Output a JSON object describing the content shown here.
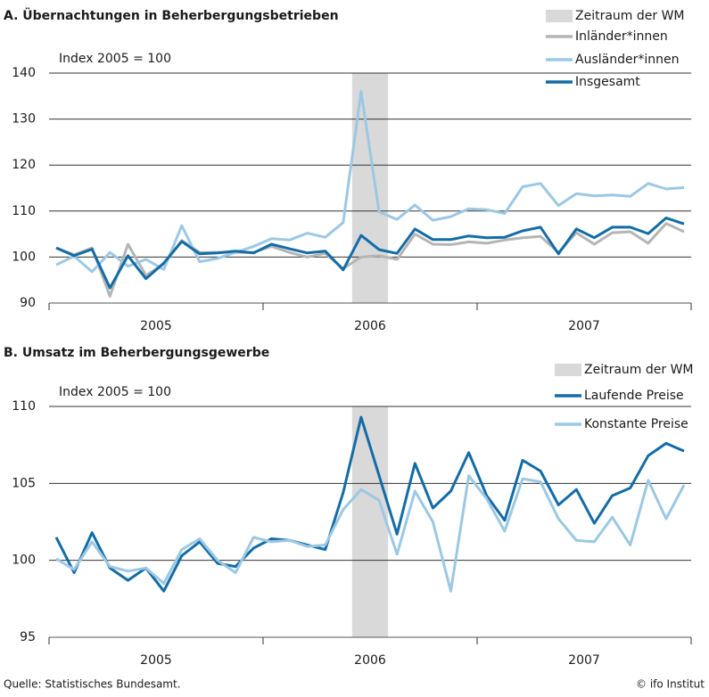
{
  "chart_data": [
    {
      "type": "line",
      "title": "A. Übernachtungen in Beherbergungsbetrieben",
      "annotation": "Index 2005 = 100",
      "year_labels": [
        "2005",
        "2006",
        "2007"
      ],
      "highlight": {
        "label": "Zeitraum der WM",
        "color": "#d9d9d9",
        "start_index": 17,
        "end_index": 18
      },
      "ylim": [
        90,
        140
      ],
      "yticks": [
        90,
        100,
        110,
        120,
        130,
        140
      ],
      "grid": true,
      "series": [
        {
          "name": "Inländer*innen",
          "color": "#b5b5b5",
          "values": [
            102,
            100.5,
            102,
            91.5,
            102.8,
            96,
            98.5,
            103.6,
            101,
            101,
            101,
            101,
            102.3,
            101,
            100,
            100.8,
            97.5,
            100,
            100.3,
            99.5,
            105,
            102.8,
            102.7,
            103.3,
            103,
            103.7,
            104.2,
            104.5,
            101,
            105.3,
            102.8,
            105.3,
            105.5,
            103,
            107.3,
            105.5
          ]
        },
        {
          "name": "Ausländer*innen",
          "color": "#9cc8e3",
          "values": [
            98.3,
            100.2,
            96.8,
            101,
            98,
            99.5,
            97.3,
            106.8,
            99,
            99.7,
            101,
            102.3,
            104,
            103.7,
            105.2,
            104.3,
            107.5,
            136,
            109.8,
            108.2,
            111.3,
            108,
            108.8,
            110.5,
            110.3,
            109.5,
            115.3,
            116,
            111.2,
            113.8,
            113.3,
            113.5,
            113.2,
            116,
            114.8,
            115.1
          ]
        },
        {
          "name": "Insgesamt",
          "color": "#136ca6",
          "values": [
            102,
            100.3,
            101.7,
            93.3,
            100.3,
            95.3,
            98.7,
            103.4,
            100.7,
            100.9,
            101.3,
            100.9,
            102.8,
            101.8,
            100.9,
            101.3,
            97.2,
            104.7,
            101.6,
            100.8,
            106.1,
            103.8,
            103.8,
            104.6,
            104.2,
            104.3,
            105.7,
            106.5,
            100.7,
            106.1,
            104.2,
            106.5,
            106.5,
            105.1,
            108.5,
            107.2
          ]
        }
      ]
    },
    {
      "type": "line",
      "title": "B. Umsatz im Beherbergungsgewerbe",
      "annotation": "Index 2005 = 100",
      "year_labels": [
        "2005",
        "2006",
        "2007"
      ],
      "highlight": {
        "label": "Zeitraum der WM",
        "color": "#d9d9d9",
        "start_index": 17,
        "end_index": 18
      },
      "ylim": [
        95,
        110
      ],
      "yticks": [
        95,
        100,
        105,
        110
      ],
      "grid": true,
      "series": [
        {
          "name": "Laufende Preise",
          "color": "#136ca6",
          "values": [
            101.5,
            99.2,
            101.8,
            99.5,
            98.7,
            99.5,
            98,
            100.3,
            101.2,
            99.8,
            99.6,
            100.8,
            101.4,
            101.3,
            101,
            100.7,
            104.4,
            109.3,
            105.5,
            101.7,
            106.3,
            103.4,
            104.5,
            107,
            104.2,
            102.6,
            106.5,
            105.8,
            103.6,
            104.6,
            102.4,
            104.2,
            104.7,
            106.8,
            107.6,
            107.1
          ]
        },
        {
          "name": "Konstante Preise",
          "color": "#9cc8e3",
          "values": [
            100.1,
            99.4,
            101.2,
            99.6,
            99.3,
            99.5,
            98.5,
            100.7,
            101.4,
            100,
            99.2,
            101.5,
            101.2,
            101.3,
            100.9,
            101,
            103.3,
            104.6,
            103.9,
            100.4,
            104.5,
            102.5,
            98,
            105.5,
            104,
            101.9,
            105.3,
            105.1,
            102.7,
            101.3,
            101.2,
            102.8,
            101,
            105.2,
            102.7,
            104.9
          ]
        }
      ]
    }
  ],
  "footer": {
    "source": "Quelle: Statistisches Bundesamt.",
    "credit": "© ifo Institut"
  }
}
